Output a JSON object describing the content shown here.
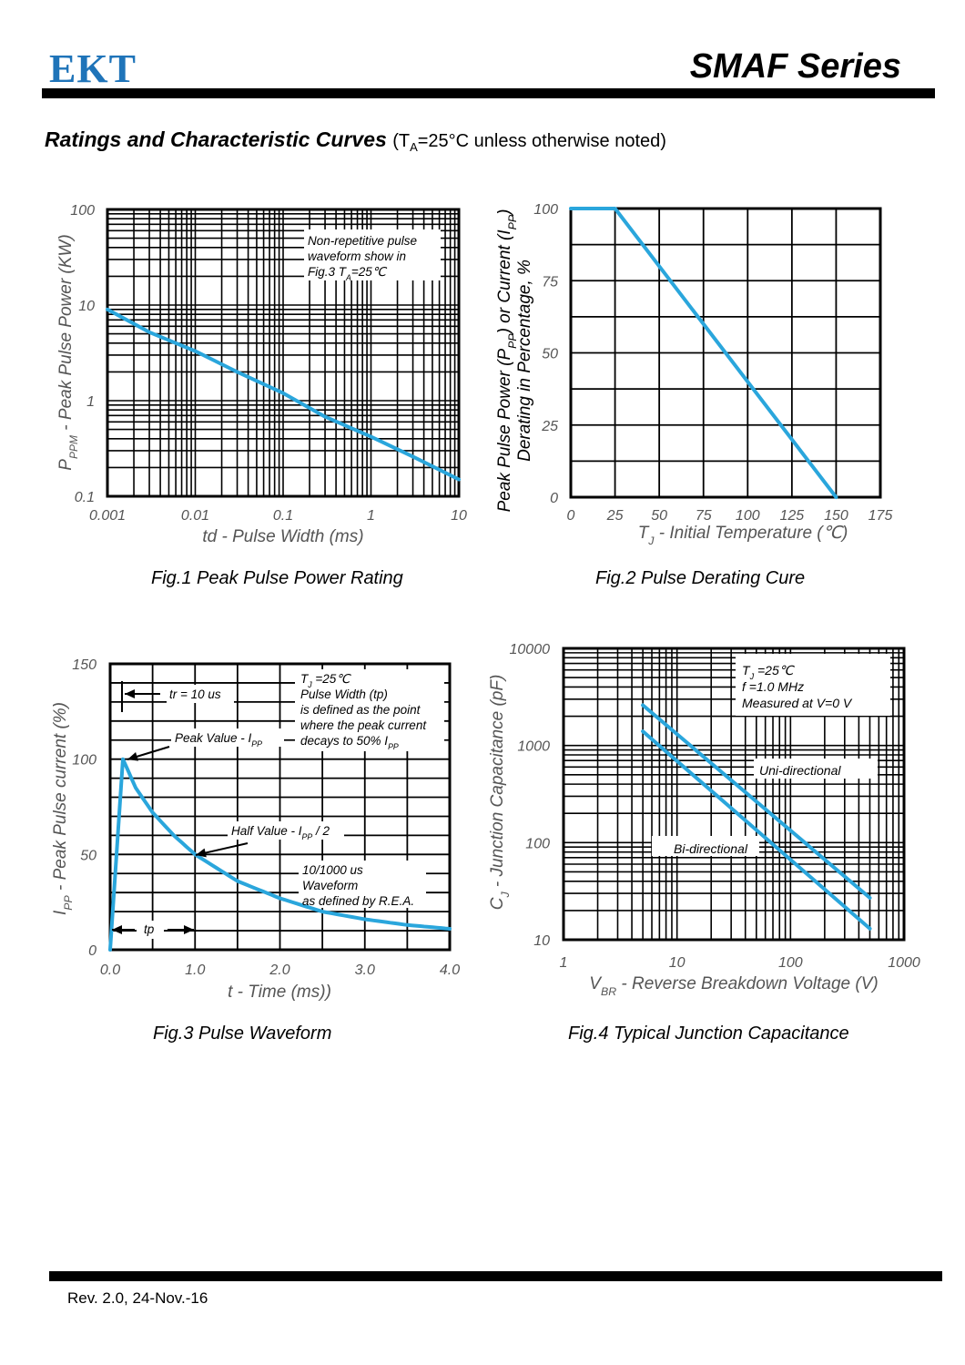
{
  "header": {
    "logo": "EKT",
    "series": "SMAF Series"
  },
  "section": {
    "title": "Ratings and Characteristic Curves",
    "note_prefix": "(T",
    "note_sub": "A",
    "note_suffix": "=25°C unless otherwise noted)"
  },
  "colors": {
    "curve": "#2aa6dc",
    "grid": "#000000",
    "logo": "#1f74b9",
    "tick_text": "#555555"
  },
  "captions": {
    "fig1": "Fig.1 Peak Pulse Power Rating",
    "fig2": "Fig.2 Pulse Derating Cure",
    "fig3": "Fig.3 Pulse Waveform",
    "fig4": "Fig.4 Typical Junction Capacitance"
  },
  "footer": {
    "revision": "Rev. 2.0, 24-Nov.-16"
  },
  "chart_data": [
    {
      "id": "fig1",
      "type": "line",
      "title": "Fig.1 Peak Pulse Power Rating",
      "xscale": "log",
      "yscale": "log",
      "xlim": [
        0.001,
        10
      ],
      "ylim": [
        0.1,
        100
      ],
      "xticks": [
        "0.001",
        "0.01",
        "0.1",
        "1",
        "10"
      ],
      "yticks": [
        "0.1",
        "1",
        "10",
        "100"
      ],
      "xlabel": "td - Pulse Width (ms)",
      "ylabel_main": "P",
      "ylabel_sub": "PPM",
      "ylabel_rest": " - Peak Pulse Power  (KW)",
      "grid": true,
      "annotation": [
        "Non-repetitive pulse",
        "waveform show in",
        "Fig.3  T_A=25℃"
      ],
      "series": [
        {
          "name": "Peak pulse power",
          "x": [
            0.001,
            0.003,
            0.01,
            0.03,
            0.1,
            0.3,
            1,
            3,
            10
          ],
          "y": [
            9,
            5.2,
            3.3,
            2.0,
            1.2,
            0.68,
            0.42,
            0.26,
            0.15
          ]
        }
      ]
    },
    {
      "id": "fig2",
      "type": "line",
      "title": "Fig.2 Pulse Derating Cure",
      "xlim": [
        0,
        175
      ],
      "ylim": [
        0,
        100
      ],
      "xticks": [
        "0",
        "25",
        "50",
        "75",
        "100",
        "125",
        "150",
        "175"
      ],
      "yticks": [
        "0",
        "25",
        "50",
        "75",
        "100"
      ],
      "xlabel": "T_J - Initial Temperature (℃)",
      "ylabel_line1": "Peak Pulse Power (P_PP) or Current (I_PP)",
      "ylabel_line2": "Derating in Percentage, %",
      "grid": true,
      "series": [
        {
          "name": "Derating",
          "x": [
            0,
            25,
            150
          ],
          "y": [
            100,
            100,
            0
          ]
        }
      ]
    },
    {
      "id": "fig3",
      "type": "line",
      "title": "Fig.3 Pulse Waveform",
      "xlim": [
        0,
        4
      ],
      "ylim": [
        0,
        150
      ],
      "xticks": [
        "0.0",
        "1.0",
        "2.0",
        "3.0",
        "4.0"
      ],
      "yticks": [
        "0",
        "50",
        "100",
        "150"
      ],
      "xlabel": "t - Time (ms))",
      "ylabel": "I_PP - Peak Pulse current (%)",
      "grid": true,
      "annotations": {
        "tr": "tr = 10 us",
        "peak": "Peak Value - I_PP",
        "half": "Half Value - I_PP / 2",
        "tp": "tp",
        "conditions": [
          "T_J =25℃",
          "Pulse Width (tp)",
          "is defined as the point",
          "where the peak current",
          "decays to 50% I_PP"
        ],
        "waveform": [
          "10/1000 us",
          "Waveform",
          "as defined by R.E.A."
        ]
      },
      "series": [
        {
          "name": "10/1000us waveform",
          "x": [
            0,
            0.15,
            0.3,
            0.5,
            0.75,
            1.0,
            1.5,
            2.0,
            2.5,
            3.0,
            3.5,
            4.0
          ],
          "y": [
            0,
            100,
            85,
            72,
            60,
            50,
            36,
            27,
            20,
            16,
            13,
            11
          ]
        }
      ]
    },
    {
      "id": "fig4",
      "type": "line",
      "title": "Fig.4 Typical Junction Capacitance",
      "xscale": "log",
      "yscale": "log",
      "xlim": [
        1,
        1000
      ],
      "ylim": [
        10,
        10000
      ],
      "xticks": [
        "1",
        "10",
        "100",
        "1000"
      ],
      "yticks": [
        "10",
        "100",
        "1000",
        "10000"
      ],
      "xlabel": "V_BR - Reverse Breakdown Voltage (V)",
      "ylabel": "C_J - Junction Capacitance (pF)",
      "grid": true,
      "annotation": [
        "T_J =25℃",
        "f =1.0 MHz",
        "Measured at V=0 V"
      ],
      "series": [
        {
          "name": "Uni-directional",
          "x": [
            5,
            500
          ],
          "y": [
            2600,
            27
          ]
        },
        {
          "name": "Bi-directional",
          "x": [
            5,
            500
          ],
          "y": [
            1400,
            13
          ]
        }
      ]
    }
  ]
}
